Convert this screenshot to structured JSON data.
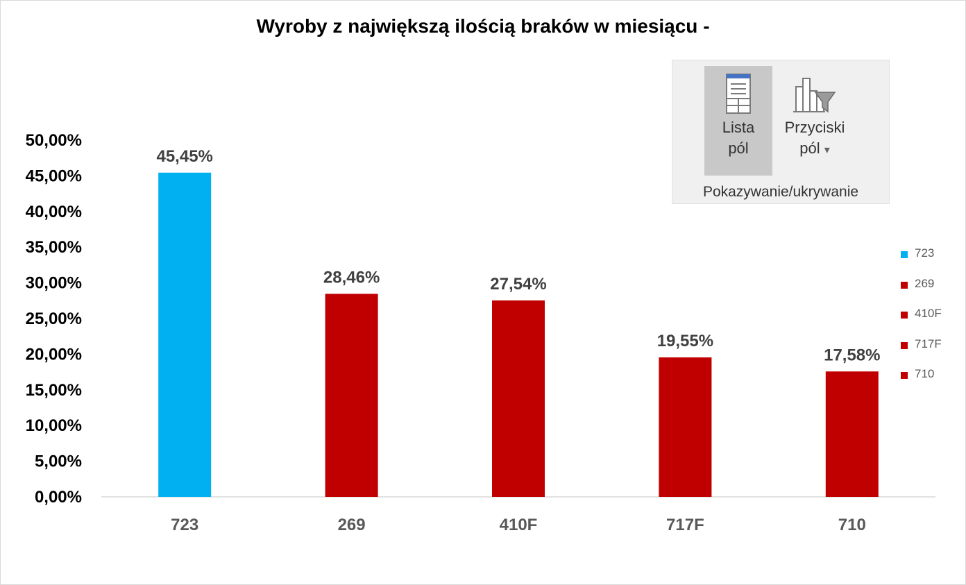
{
  "chart_data": {
    "type": "bar",
    "title": "Wyroby z największą ilością braków w miesiącu -",
    "categories": [
      "723",
      "269",
      "410F",
      "717F",
      "710"
    ],
    "values": [
      45.45,
      28.46,
      27.54,
      19.55,
      17.58
    ],
    "value_labels": [
      "45,45%",
      "28,46%",
      "27,54%",
      "19,55%",
      "17,58%"
    ],
    "bar_colors": [
      "#00B0F0",
      "#C00000",
      "#C00000",
      "#C00000",
      "#C00000"
    ],
    "ylim": [
      0,
      50
    ],
    "yticks": [
      "0,00%",
      "5,00%",
      "10,00%",
      "15,00%",
      "20,00%",
      "25,00%",
      "30,00%",
      "35,00%",
      "40,00%",
      "45,00%",
      "50,00%"
    ],
    "grid": false,
    "legend_position": "right",
    "legend": [
      "723",
      "269",
      "410F",
      "717F",
      "710"
    ]
  },
  "ribbon": {
    "button_lista_line1": "Lista",
    "button_lista_line2": "pól",
    "button_przyciski_line1": "Przyciski",
    "button_przyciski_line2": "pól",
    "dropdown_glyph": "▾",
    "group_label": "Pokazywanie/ukrywanie",
    "icons": [
      "field-list-icon",
      "field-buttons-icon"
    ]
  }
}
